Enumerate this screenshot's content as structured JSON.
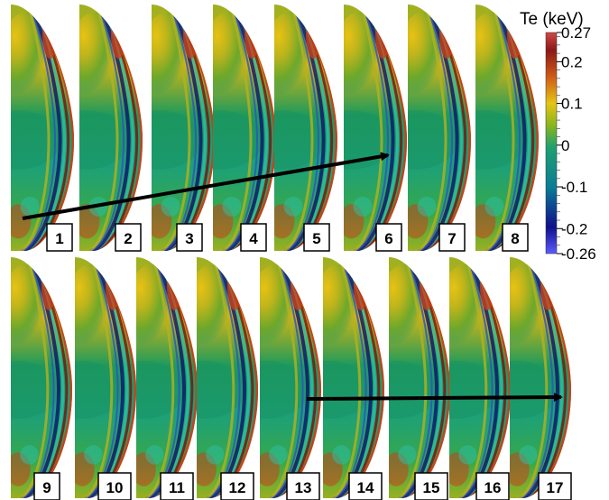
{
  "colorbar": {
    "title": "Te (keV)",
    "ticks": [
      "0.27",
      "0.2",
      "0.1",
      "0",
      "-0.1",
      "-0.2",
      "-0.26"
    ],
    "tick_values": [
      0.27,
      0.2,
      0.1,
      0,
      -0.1,
      -0.2,
      -0.26
    ],
    "range": [
      -0.26,
      0.27
    ],
    "colors": [
      "#5a5cff",
      "#0a0a6e",
      "#0a8c9c",
      "#1fa06a",
      "#8ab51e",
      "#e0c214",
      "#cf5a16",
      "#8c1818",
      "#d04040"
    ]
  },
  "palette": {
    "core": "#e0c016",
    "mid": "#1c9a68",
    "teal": "#2bbfa8",
    "warm": "#b5b020",
    "hot": "#c8401c",
    "dark_red": "#7a1010",
    "dark_blue": "#101070",
    "blue": "#3050c8"
  },
  "frames": {
    "row1": [
      "1",
      "2",
      "3",
      "4",
      "5",
      "6",
      "7",
      "8"
    ],
    "row2": [
      "9",
      "10",
      "11",
      "12",
      "13",
      "14",
      "15",
      "16",
      "17"
    ]
  }
}
